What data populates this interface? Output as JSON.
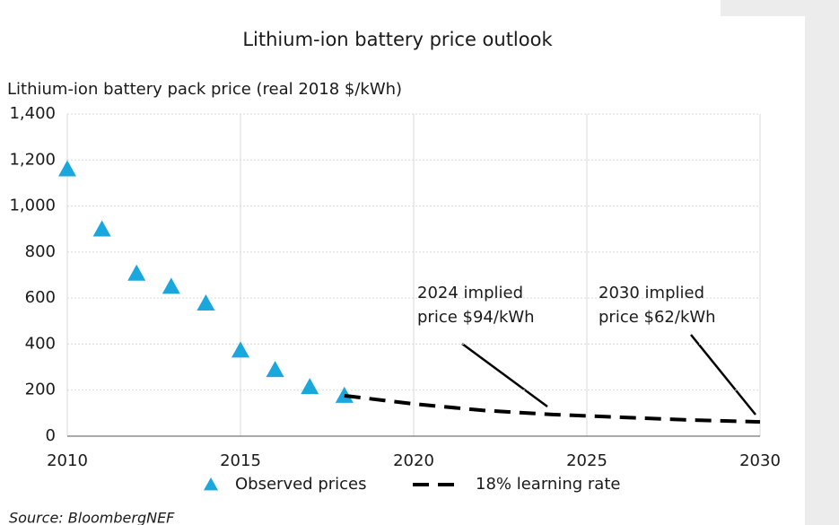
{
  "chart_data": {
    "type": "scatter-line",
    "title": "Lithium-ion battery price outlook",
    "y_label": "Lithium-ion battery pack price (real 2018 $/kWh)",
    "source": "Source: BloombergNEF",
    "series": [
      {
        "name": "Observed prices",
        "kind": "scatter",
        "color": "#1aa7de",
        "x": [
          2010,
          2011,
          2012,
          2013,
          2014,
          2015,
          2016,
          2017,
          2018
        ],
        "values": [
          1160,
          899,
          707,
          650,
          577,
          373,
          288,
          214,
          176
        ]
      },
      {
        "name": "18% learning rate",
        "kind": "line",
        "color": "#000000",
        "x": [
          2018,
          2020,
          2022,
          2024,
          2026,
          2028,
          2030
        ],
        "values": [
          176,
          140,
          112,
          94,
          82,
          70,
          62
        ]
      }
    ],
    "annotations": [
      {
        "lines": [
          "2024 implied",
          "price $94/kWh"
        ]
      },
      {
        "lines": [
          "2030 implied",
          "price $62/kWh"
        ]
      }
    ],
    "xlim": [
      2010,
      2030
    ],
    "xticks": [
      2010,
      2015,
      2020,
      2025,
      2030
    ],
    "ylim": [
      0,
      1400
    ],
    "yticks": [
      0,
      200,
      400,
      600,
      800,
      {
        "value": 1000,
        "label": "1,000"
      },
      {
        "value": 1200,
        "label": "1,200"
      },
      {
        "value": 1400,
        "label": "1,400"
      }
    ],
    "grid": true
  }
}
